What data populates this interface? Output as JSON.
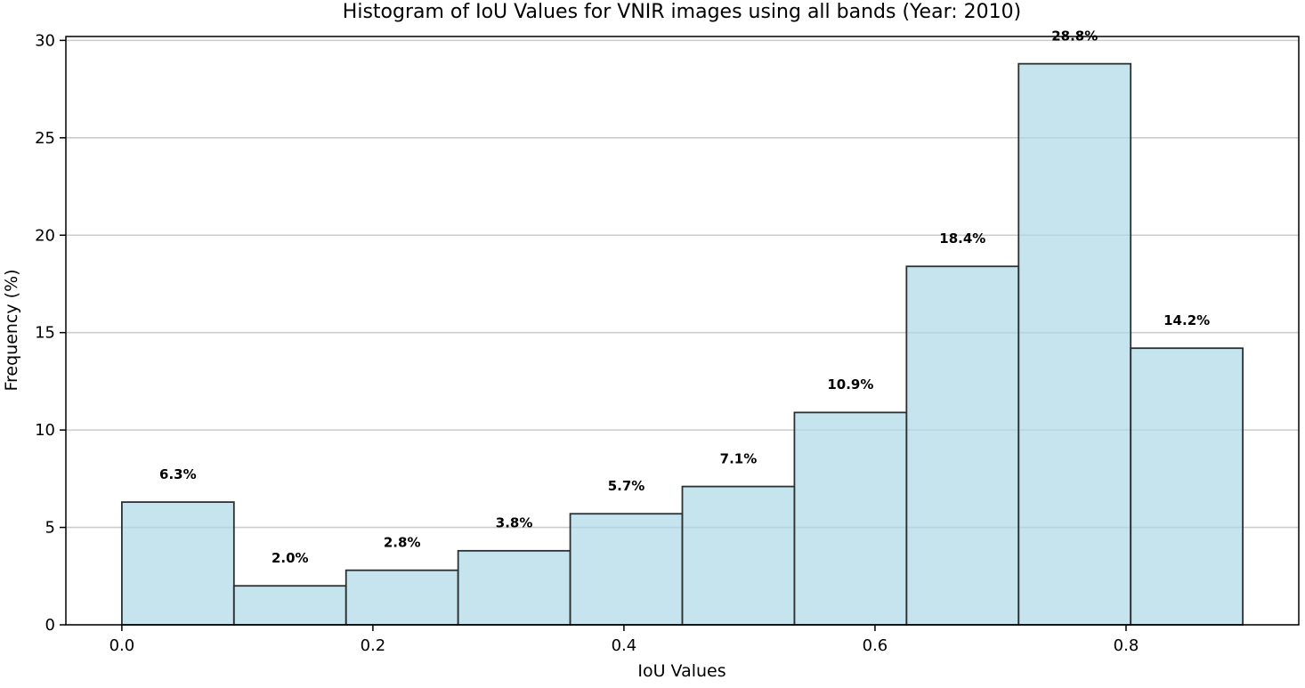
{
  "chart_data": {
    "type": "bar",
    "title": "Histogram of IoU Values for VNIR images using all bands (Year: 2010)",
    "xlabel": "IoU Values",
    "ylabel": "Frequency (%)",
    "bin_edges": [
      0.0,
      0.0893,
      0.1786,
      0.2679,
      0.3572,
      0.4465,
      0.5358,
      0.6251,
      0.7144,
      0.8037,
      0.893
    ],
    "values": [
      6.3,
      2.0,
      2.8,
      3.8,
      5.7,
      7.1,
      10.9,
      18.4,
      28.8,
      14.2
    ],
    "data_labels": [
      "6.3%",
      "2.0%",
      "2.8%",
      "3.8%",
      "5.7%",
      "7.1%",
      "10.9%",
      "18.4%",
      "28.8%",
      "14.2%"
    ],
    "xlim": [
      -0.0446,
      0.9376
    ],
    "ylim": [
      0,
      30.2
    ],
    "xticks": [
      0.0,
      0.2,
      0.4,
      0.6,
      0.8
    ],
    "xtick_labels": [
      "0.0",
      "0.2",
      "0.4",
      "0.6",
      "0.8"
    ],
    "yticks": [
      0,
      5,
      10,
      15,
      20,
      25,
      30
    ],
    "ytick_labels": [
      "0",
      "5",
      "10",
      "15",
      "20",
      "25",
      "30"
    ],
    "grid": "y-major",
    "bar_color": "#add8e6",
    "bar_edge_color": "#000000"
  }
}
